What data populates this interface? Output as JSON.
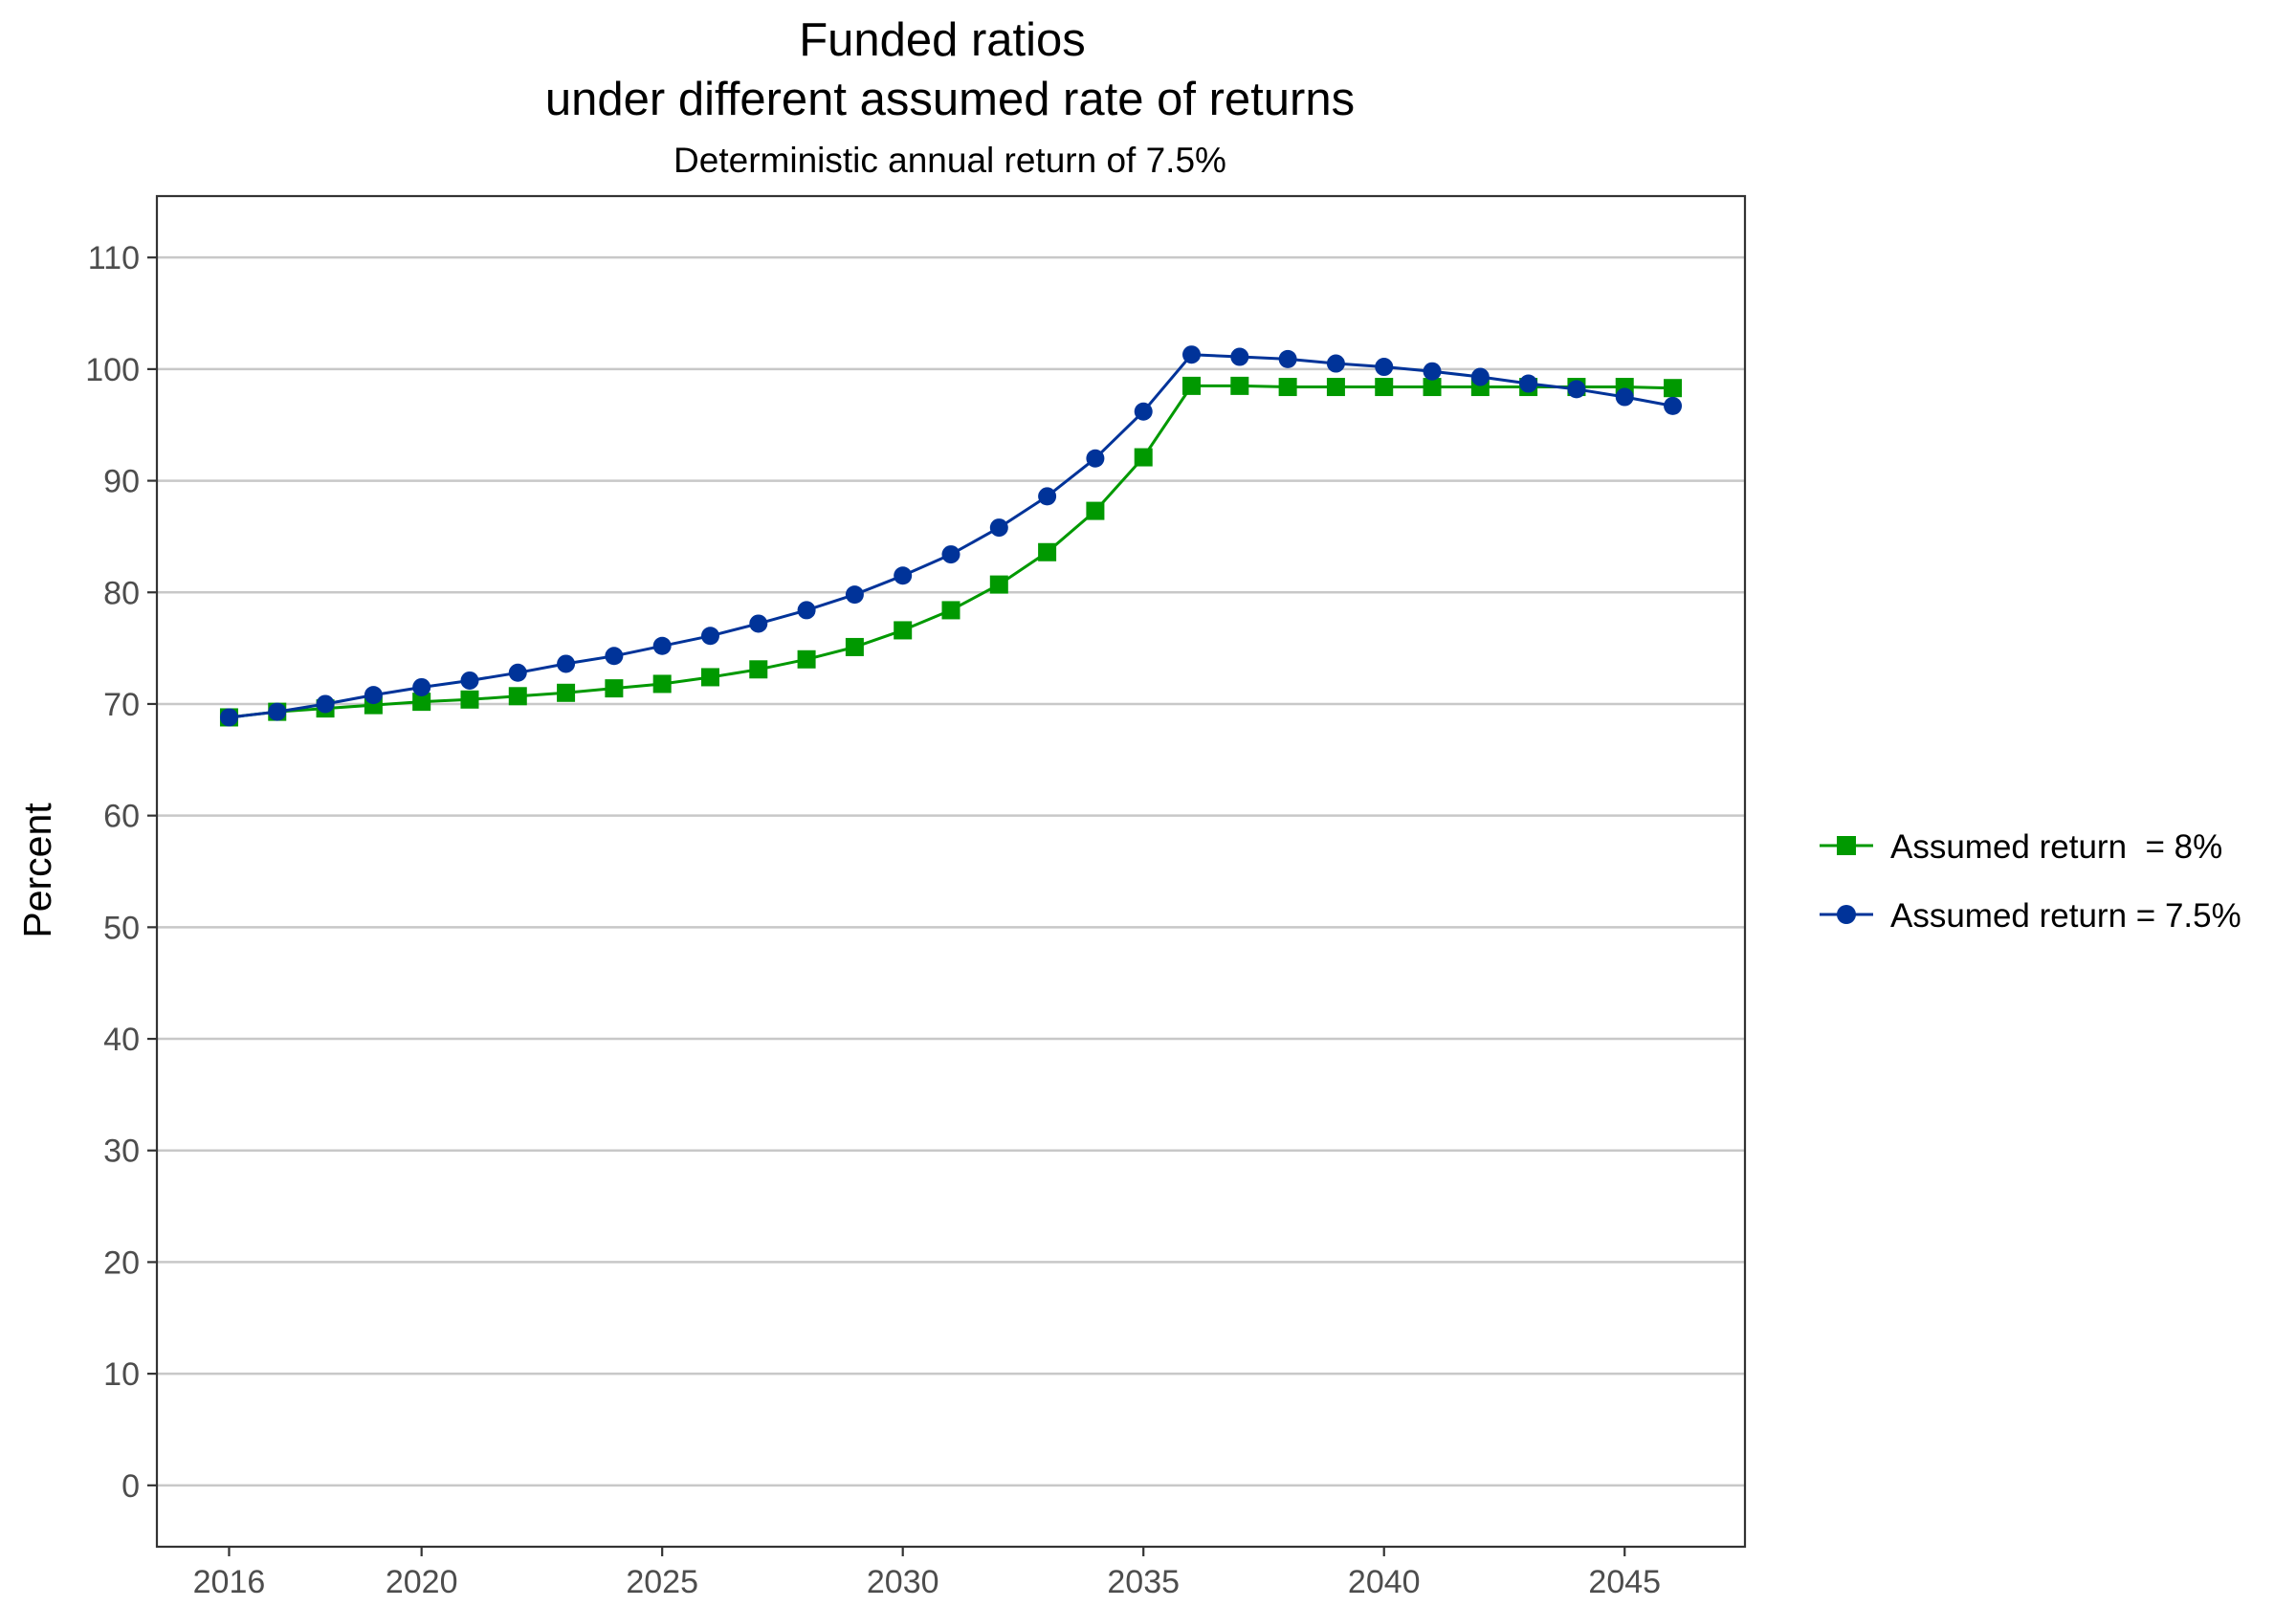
{
  "chart_data": {
    "type": "line",
    "title": "Funded ratios",
    "title_line2": "under different assumed rate of returns",
    "subtitle": "Deterministic annual return of 7.5%",
    "xlabel": "",
    "ylabel": "Percent",
    "xlim": [
      2014.5,
      2047.5
    ],
    "ylim": [
      -5.5,
      115.5
    ],
    "x_ticks": [
      2016,
      2020,
      2025,
      2030,
      2035,
      2040,
      2045
    ],
    "y_ticks": [
      0,
      10,
      20,
      30,
      40,
      50,
      60,
      70,
      80,
      90,
      100,
      110
    ],
    "grid": "horizontal-major",
    "legend_position": "right",
    "x": [
      2016,
      2017,
      2018,
      2019,
      2020,
      2021,
      2022,
      2023,
      2024,
      2025,
      2026,
      2027,
      2028,
      2029,
      2030,
      2031,
      2032,
      2033,
      2034,
      2035,
      2036,
      2037,
      2038,
      2039,
      2040,
      2041,
      2042,
      2043,
      2044,
      2045,
      2046
    ],
    "series": [
      {
        "name": "Assumed return  = 8%",
        "color": "#009900",
        "marker": "square",
        "values": [
          68.8,
          69.3,
          69.6,
          69.9,
          70.2,
          70.4,
          70.7,
          71.0,
          71.4,
          71.8,
          72.4,
          73.1,
          74.0,
          75.1,
          76.6,
          78.4,
          80.7,
          83.6,
          87.3,
          92.1,
          98.5,
          98.5,
          98.4,
          98.4,
          98.4,
          98.4,
          98.4,
          98.4,
          98.4,
          98.4,
          98.3
        ]
      },
      {
        "name": "Assumed return = 7.5%",
        "color": "#003399",
        "marker": "circle",
        "values": [
          68.8,
          69.3,
          70.0,
          70.8,
          71.5,
          72.1,
          72.8,
          73.6,
          74.3,
          75.2,
          76.1,
          77.2,
          78.4,
          79.8,
          81.5,
          83.4,
          85.8,
          88.6,
          92.0,
          96.2,
          101.3,
          101.1,
          100.9,
          100.5,
          100.2,
          99.8,
          99.3,
          98.7,
          98.2,
          97.5,
          96.7
        ]
      }
    ]
  }
}
